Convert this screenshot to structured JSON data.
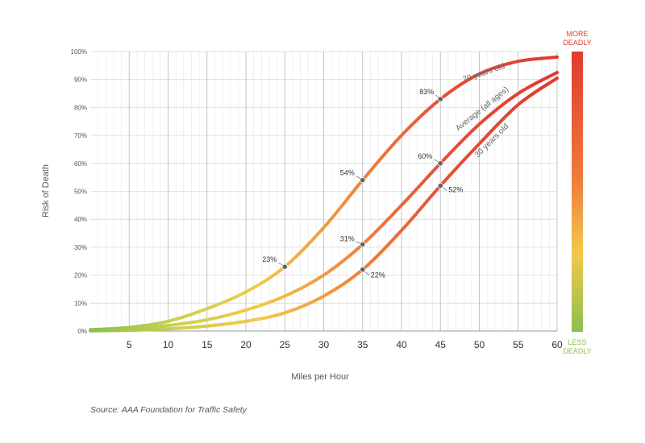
{
  "chart_data": {
    "type": "line",
    "xlabel": "Miles per Hour",
    "ylabel": "Risk of Death",
    "xlim": [
      0,
      60
    ],
    "ylim": [
      0,
      100
    ],
    "x_ticks": [
      5,
      10,
      15,
      20,
      25,
      30,
      35,
      40,
      45,
      50,
      55,
      60
    ],
    "y_ticks": [
      "0%",
      "10%",
      "20%",
      "30%",
      "40%",
      "50%",
      "60%",
      "70%",
      "80%",
      "90%",
      "100%"
    ],
    "grid": true,
    "series": [
      {
        "name": "70 years old",
        "x": [
          0,
          5,
          10,
          15,
          20,
          25,
          30,
          35,
          40,
          45,
          50,
          55,
          60
        ],
        "y": [
          0.5,
          1.3,
          3.5,
          8,
          14,
          23,
          37,
          54,
          70,
          83,
          92,
          96.5,
          98
        ]
      },
      {
        "name": "Average (all ages)",
        "x": [
          0,
          5,
          10,
          15,
          20,
          25,
          30,
          35,
          40,
          45,
          50,
          55,
          60
        ],
        "y": [
          0.3,
          0.8,
          2,
          4,
          7.5,
          12.5,
          20,
          31,
          45,
          60,
          74,
          85,
          92.5
        ]
      },
      {
        "name": "30 years old",
        "x": [
          0,
          5,
          10,
          15,
          20,
          25,
          30,
          35,
          40,
          45,
          50,
          55,
          60
        ],
        "y": [
          0.1,
          0.3,
          0.8,
          1.8,
          3.5,
          6.5,
          12.5,
          22,
          36,
          52,
          67,
          81,
          90.5
        ]
      }
    ],
    "annotations": [
      {
        "label": "83%",
        "series": 0,
        "x": 45,
        "y": 83
      },
      {
        "label": "54%",
        "series": 0,
        "x": 35,
        "y": 54
      },
      {
        "label": "23%",
        "series": 0,
        "x": 25,
        "y": 23
      },
      {
        "label": "60%",
        "series": 1,
        "x": 45,
        "y": 60
      },
      {
        "label": "31%",
        "series": 1,
        "x": 35,
        "y": 31
      },
      {
        "label": "52%",
        "series": 2,
        "x": 45,
        "y": 52
      },
      {
        "label": "22%",
        "series": 2,
        "x": 35,
        "y": 22
      }
    ],
    "color_scale": {
      "top_label": [
        "MORE",
        "DEADLY"
      ],
      "bottom_label": [
        "LESS",
        "DEADLY"
      ],
      "top_color": "#e03a2f",
      "bottom_color": "#8cbf4e"
    },
    "line_colors": {
      "low": "#8cbf4e",
      "mid": "#f2c94c",
      "high": "#e03a2f"
    }
  },
  "source": "Source: AAA Foundation for Traffic Safety"
}
